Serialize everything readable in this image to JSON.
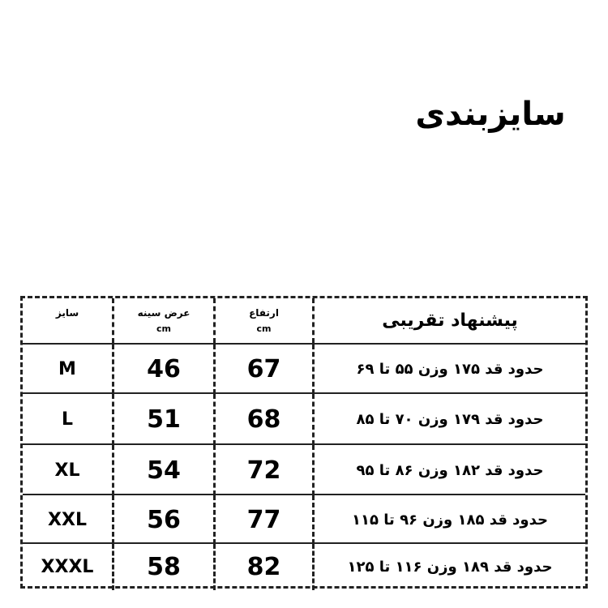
{
  "title": "سایزبندی",
  "header": {
    "size": "سایز",
    "chest": "عرض سینه",
    "chest_unit": "cm",
    "height": "ارتفاع",
    "height_unit": "cm",
    "suggestion": "پیشنهاد تقریبی"
  },
  "rows": [
    {
      "size": "M",
      "chest": "46",
      "height": "67",
      "suggestion": "حدود قد ۱۷۵ وزن ۵۵ تا ۶۹"
    },
    {
      "size": "L",
      "chest": "51",
      "height": "68",
      "suggestion": "حدود قد ۱۷۹ وزن ۷۰ تا ۸۵"
    },
    {
      "size": "XL",
      "chest": "54",
      "height": "72",
      "suggestion": "حدود قد ۱۸۲ وزن ۸۶ تا ۹۵"
    },
    {
      "size": "XXL",
      "chest": "56",
      "height": "77",
      "suggestion": "حدود قد ۱۸۵ وزن ۹۶ تا ۱۱۵"
    },
    {
      "size": "XXXL",
      "chest": "58",
      "height": "82",
      "suggestion": "حدود قد ۱۸۹ وزن ۱۱۶ تا ۱۲۵"
    }
  ]
}
